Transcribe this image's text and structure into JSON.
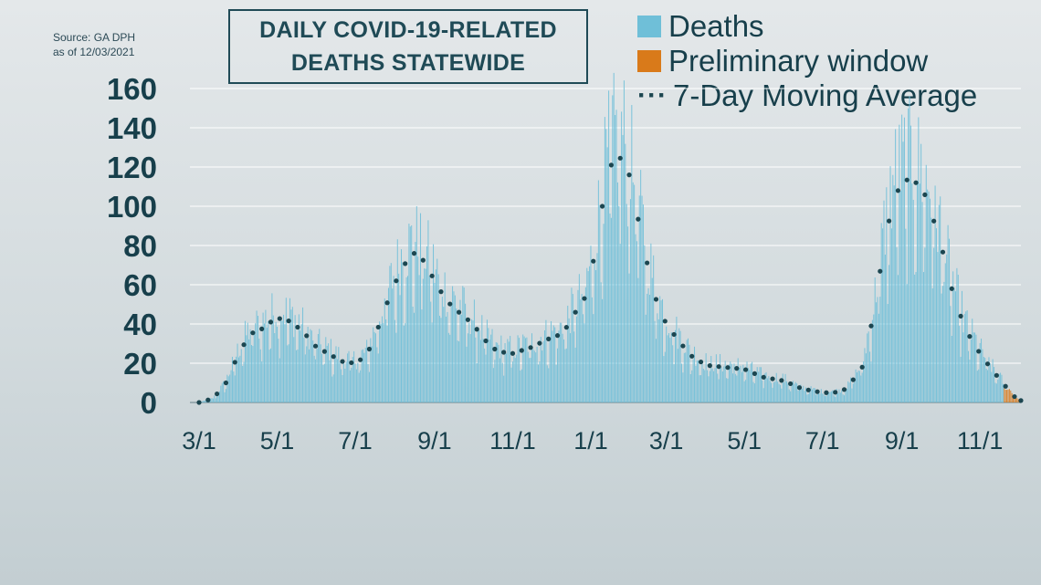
{
  "source": {
    "line1": "Source: GA DPH",
    "line2": "as of 12/03/2021"
  },
  "chart_data": {
    "type": "bar",
    "title_line1": "DAILY COVID-19-RELATED",
    "title_line2": "DEATHS STATEWIDE",
    "xlabel": "",
    "ylabel": "",
    "ylim": [
      0,
      160
    ],
    "y_ticks": [
      0,
      20,
      40,
      60,
      80,
      100,
      120,
      140,
      160
    ],
    "x_ticks": [
      "3/1",
      "5/1",
      "7/1",
      "9/1",
      "11/1",
      "1/1",
      "3/1",
      "5/1",
      "7/1",
      "9/1",
      "11/1"
    ],
    "grid": true,
    "legend_position": "top-right",
    "colors": {
      "deaths": "#6fbfd8",
      "preliminary": "#d97a1a",
      "moving_average": "#1c4650",
      "axis_text": "#173f4b"
    },
    "legend": [
      {
        "label": "Deaths",
        "marker": "swatch",
        "color": "#6fbfd8"
      },
      {
        "label": "Preliminary window",
        "marker": "swatch",
        "color": "#d97a1a"
      },
      {
        "label": "7-Day Moving Average",
        "marker": "dots",
        "color": "#1c4650"
      }
    ],
    "moving_average_curve": [
      [
        "2020-03-01",
        0
      ],
      [
        "2020-03-12",
        2
      ],
      [
        "2020-03-22",
        10
      ],
      [
        "2020-04-01",
        25
      ],
      [
        "2020-04-10",
        35
      ],
      [
        "2020-04-18",
        37
      ],
      [
        "2020-04-26",
        41
      ],
      [
        "2020-05-01",
        43
      ],
      [
        "2020-05-09",
        42
      ],
      [
        "2020-05-16",
        39
      ],
      [
        "2020-05-24",
        34
      ],
      [
        "2020-06-01",
        28
      ],
      [
        "2020-06-10",
        25
      ],
      [
        "2020-06-20",
        21
      ],
      [
        "2020-07-01",
        20
      ],
      [
        "2020-07-10",
        24
      ],
      [
        "2020-07-20",
        40
      ],
      [
        "2020-07-30",
        58
      ],
      [
        "2020-08-08",
        70
      ],
      [
        "2020-08-16",
        76
      ],
      [
        "2020-08-24",
        72
      ],
      [
        "2020-09-01",
        62
      ],
      [
        "2020-09-10",
        52
      ],
      [
        "2020-09-20",
        46
      ],
      [
        "2020-10-01",
        40
      ],
      [
        "2020-10-10",
        32
      ],
      [
        "2020-10-20",
        26
      ],
      [
        "2020-11-01",
        25
      ],
      [
        "2020-11-15",
        28
      ],
      [
        "2020-12-01",
        33
      ],
      [
        "2020-12-10",
        35
      ],
      [
        "2020-12-20",
        46
      ],
      [
        "2020-12-28",
        54
      ],
      [
        "2021-01-04",
        75
      ],
      [
        "2021-01-10",
        100
      ],
      [
        "2021-01-16",
        120
      ],
      [
        "2021-01-21",
        125
      ],
      [
        "2021-01-27",
        124
      ],
      [
        "2021-02-01",
        114
      ],
      [
        "2021-02-08",
        90
      ],
      [
        "2021-02-15",
        68
      ],
      [
        "2021-02-22",
        50
      ],
      [
        "2021-03-01",
        40
      ],
      [
        "2021-03-10",
        32
      ],
      [
        "2021-03-20",
        24
      ],
      [
        "2021-04-01",
        19
      ],
      [
        "2021-04-15",
        18
      ],
      [
        "2021-05-01",
        17
      ],
      [
        "2021-05-15",
        13
      ],
      [
        "2021-06-01",
        11
      ],
      [
        "2021-06-15",
        7
      ],
      [
        "2021-07-01",
        5
      ],
      [
        "2021-07-10",
        5
      ],
      [
        "2021-07-20",
        7
      ],
      [
        "2021-08-01",
        18
      ],
      [
        "2021-08-10",
        45
      ],
      [
        "2021-08-18",
        80
      ],
      [
        "2021-08-26",
        105
      ],
      [
        "2021-09-01",
        111
      ],
      [
        "2021-09-06",
        114
      ],
      [
        "2021-09-12",
        112
      ],
      [
        "2021-09-20",
        105
      ],
      [
        "2021-10-01",
        82
      ],
      [
        "2021-10-10",
        58
      ],
      [
        "2021-10-20",
        38
      ],
      [
        "2021-11-01",
        25
      ],
      [
        "2021-11-10",
        17
      ],
      [
        "2021-11-20",
        9
      ],
      [
        "2021-11-28",
        3
      ],
      [
        "2021-12-03",
        1
      ]
    ],
    "preliminary_window": {
      "start": "2021-11-20",
      "end": "2021-12-03"
    }
  }
}
